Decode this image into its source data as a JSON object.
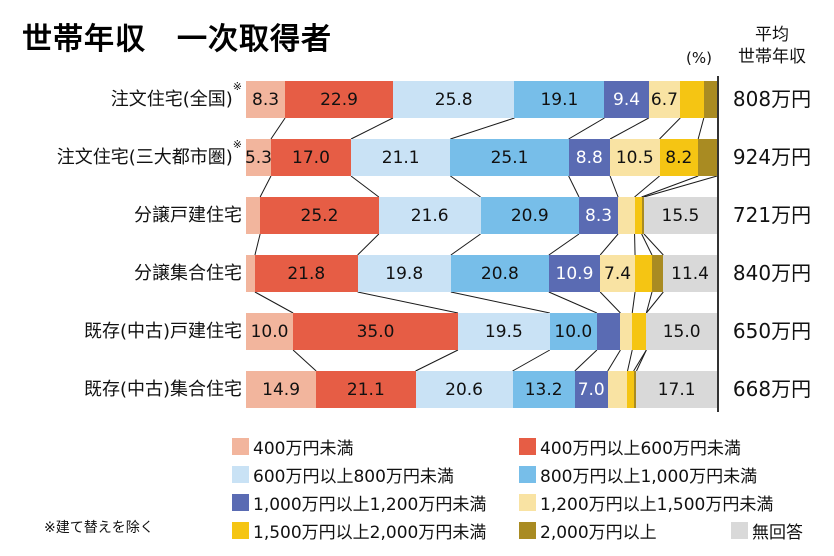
{
  "title": "世帯年収　一次取得者",
  "header": {
    "percent_label": "(%)",
    "avg_line1": "平均",
    "avg_line2": "世帯年収"
  },
  "note": "※建て替えを除く",
  "chart_data": {
    "type": "bar",
    "stacked": true,
    "orientation": "horizontal",
    "unit": "%",
    "xlim": [
      0,
      100
    ],
    "title": "世帯年収　一次取得者",
    "categories": [
      {
        "label": "注文住宅(全国)",
        "sup": "※"
      },
      {
        "label": "注文住宅(三大都市圏)",
        "sup": "※"
      },
      {
        "label": "分譲戸建住宅",
        "sup": ""
      },
      {
        "label": "分譲集合住宅",
        "sup": ""
      },
      {
        "label": "既存(中古)戸建住宅",
        "sup": ""
      },
      {
        "label": "既存(中古)集合住宅",
        "sup": ""
      }
    ],
    "averages_header": "平均世帯年収",
    "averages": [
      "808万円",
      "924万円",
      "721万円",
      "840万円",
      "650万円",
      "668万円"
    ],
    "series": [
      {
        "name": "400万円未満",
        "color": "#F2B59D",
        "values": [
          8.3,
          5.3,
          3.0,
          1.9,
          10.0,
          14.9
        ],
        "labels": [
          "8.3",
          "5.3",
          "",
          "",
          "10.0",
          "14.9"
        ]
      },
      {
        "name": "400万円以上600万円未満",
        "color": "#E65D45",
        "values": [
          22.9,
          17.0,
          25.2,
          21.8,
          35.0,
          21.1
        ],
        "labels": [
          "22.9",
          "17.0",
          "25.2",
          "21.8",
          "35.0",
          "21.1"
        ]
      },
      {
        "name": "600万円以上800万円未満",
        "color": "#C9E2F5",
        "values": [
          25.8,
          21.1,
          21.6,
          19.8,
          19.5,
          20.6
        ],
        "labels": [
          "25.8",
          "21.1",
          "21.6",
          "19.8",
          "19.5",
          "20.6"
        ]
      },
      {
        "name": "800万円以上1,000万円未満",
        "color": "#77BEE9",
        "values": [
          19.1,
          25.1,
          20.9,
          20.8,
          10.0,
          13.2
        ],
        "labels": [
          "19.1",
          "25.1",
          "20.9",
          "20.8",
          "10.0",
          "13.2"
        ]
      },
      {
        "name": "1,000万円以上1,200万円未満",
        "color": "#5A6BB3",
        "values": [
          9.4,
          8.8,
          8.3,
          10.9,
          5.0,
          7.0
        ],
        "labels": [
          "9.4",
          "8.8",
          "8.3",
          "10.9",
          "",
          "7.0"
        ]
      },
      {
        "name": "1,200万円以上1,500万円未満",
        "color": "#F9E3A3",
        "values": [
          6.7,
          10.5,
          3.5,
          7.4,
          2.5,
          4.2
        ],
        "labels": [
          "6.7",
          "10.5",
          "",
          "7.4",
          "",
          ""
        ]
      },
      {
        "name": "1,500万円以上2,000万円未満",
        "color": "#F5C513",
        "values": [
          5.0,
          8.2,
          1.5,
          3.6,
          3.0,
          1.3
        ],
        "labels": [
          "",
          "8.2",
          "",
          "",
          "",
          ""
        ]
      },
      {
        "name": "2,000万円以上",
        "color": "#A98B22",
        "values": [
          2.8,
          4.0,
          0.5,
          2.4,
          0.0,
          0.6
        ],
        "labels": [
          "",
          "",
          "",
          "",
          "",
          ""
        ]
      },
      {
        "name": "無回答",
        "color": "#D9D9D9",
        "values": [
          0.0,
          0.0,
          15.5,
          11.4,
          15.0,
          17.1
        ],
        "labels": [
          "",
          "",
          "15.5",
          "11.4",
          "15.0",
          "17.1"
        ]
      }
    ],
    "label_text_white_on": "1,000万円以上1,200万円未満",
    "legend_rows": [
      [
        0,
        1
      ],
      [
        2,
        3
      ],
      [
        4,
        5
      ],
      [
        6,
        7,
        8
      ]
    ]
  }
}
